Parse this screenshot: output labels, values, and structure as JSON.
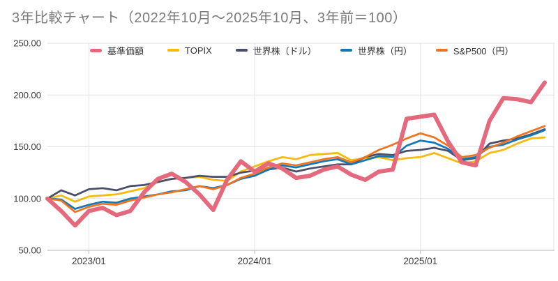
{
  "title": "3年比較チャート（2022年10月～2025年10月、3年前＝100）",
  "colors": {
    "background": "#ffffff",
    "title_text": "#7a7a7a",
    "axis_text": "#3c3c3c",
    "legend_text": "#333333",
    "gridline": "#e3e3e3",
    "axis_line": "#b3b3b3"
  },
  "y_axis": {
    "tick_labels": [
      "250.00",
      "200.00",
      "150.00",
      "100.00",
      "50.00"
    ],
    "tick_values": [
      250,
      200,
      150,
      100,
      50
    ],
    "min": 50,
    "max": 250
  },
  "x_axis": {
    "ticks": [
      {
        "label": "2023/01",
        "month_index": 3
      },
      {
        "label": "2024/01",
        "month_index": 15
      },
      {
        "label": "2025/01",
        "month_index": 27
      }
    ]
  },
  "chart_data": {
    "type": "line",
    "title": "3年比較チャート（2022年10月～2025年10月、3年前＝100）",
    "xlabel": "",
    "ylabel": "",
    "ylim": [
      50,
      250
    ],
    "grid": true,
    "legend_position": "top",
    "index_base": 100,
    "categories": [
      "2022/10",
      "2022/11",
      "2022/12",
      "2023/01",
      "2023/02",
      "2023/03",
      "2023/04",
      "2023/05",
      "2023/06",
      "2023/07",
      "2023/08",
      "2023/09",
      "2023/10",
      "2023/11",
      "2023/12",
      "2024/01",
      "2024/02",
      "2024/03",
      "2024/04",
      "2024/05",
      "2024/06",
      "2024/07",
      "2024/08",
      "2024/09",
      "2024/10",
      "2024/11",
      "2024/12",
      "2025/01",
      "2025/02",
      "2025/03",
      "2025/04",
      "2025/05",
      "2025/06",
      "2025/07",
      "2025/08",
      "2025/09",
      "2025/10"
    ],
    "series": [
      {
        "key": "fund",
        "name": "基準価額",
        "color": "#e5697c",
        "width": 6,
        "values": [
          100,
          88,
          74,
          88,
          91,
          84,
          88,
          106,
          119,
          124,
          116,
          104,
          89,
          118,
          136,
          126,
          134,
          129,
          120,
          122,
          128,
          131,
          123,
          118,
          126,
          128,
          177,
          179,
          181,
          155,
          135,
          132,
          175,
          197,
          196,
          193,
          212
        ]
      },
      {
        "key": "topix",
        "name": "TOPIX",
        "color": "#f8b90d",
        "width": 2.75,
        "values": [
          100,
          103,
          97,
          102,
          103,
          104,
          107,
          110,
          116,
          119,
          120,
          121,
          118,
          117,
          126,
          131,
          136,
          140,
          138,
          142,
          143,
          144,
          137,
          139,
          140,
          137,
          139,
          140,
          144,
          139,
          134,
          136,
          144,
          147,
          153,
          158,
          159
        ]
      },
      {
        "key": "world-usd",
        "name": "世界株（ドル）",
        "color": "#4a4e69",
        "width": 2.75,
        "values": [
          100,
          108,
          103,
          109,
          110,
          108,
          112,
          113,
          116,
          119,
          120,
          122,
          121,
          121,
          125,
          127,
          128,
          130,
          126,
          129,
          131,
          133,
          133,
          140,
          143,
          142,
          146,
          147,
          149,
          146,
          137,
          139,
          153,
          156,
          158,
          162,
          167
        ]
      },
      {
        "key": "world-jpy",
        "name": "世界株（円）",
        "color": "#1478b6",
        "width": 2.75,
        "values": [
          100,
          99,
          90,
          94,
          97,
          96,
          100,
          102,
          104,
          107,
          108,
          112,
          110,
          113,
          119,
          122,
          128,
          132,
          130,
          133,
          136,
          138,
          133,
          137,
          141,
          140,
          151,
          156,
          154,
          148,
          138,
          140,
          150,
          152,
          157,
          161,
          166
        ]
      },
      {
        "key": "sp500-jpy",
        "name": "S&P500（円）",
        "color": "#f1731d",
        "width": 2.75,
        "values": [
          100,
          98,
          87,
          92,
          95,
          94,
          98,
          101,
          104,
          106,
          109,
          112,
          109,
          113,
          120,
          124,
          130,
          134,
          132,
          135,
          138,
          140,
          135,
          140,
          147,
          152,
          158,
          163,
          159,
          151,
          140,
          142,
          149,
          154,
          160,
          165,
          170
        ]
      }
    ]
  }
}
